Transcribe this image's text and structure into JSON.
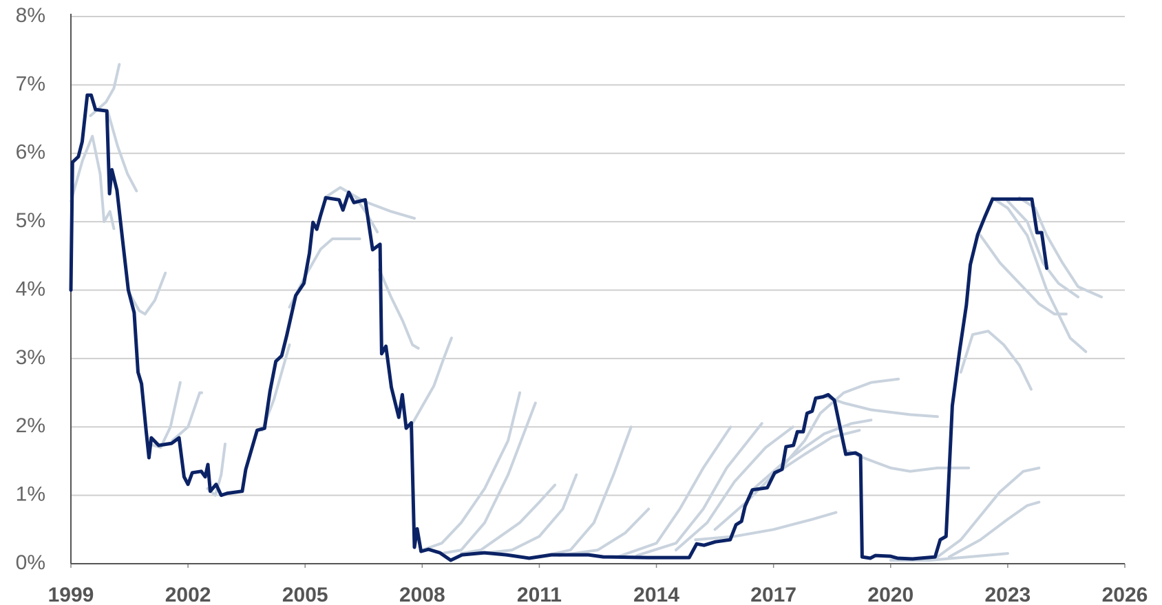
{
  "chart_data": {
    "type": "line",
    "xlim": [
      1999,
      2026
    ],
    "xticks": [
      1999,
      2002,
      2005,
      2008,
      2011,
      2014,
      2017,
      2020,
      2023,
      2026
    ],
    "ylim": [
      0,
      8
    ],
    "yticks": [
      {
        "value": 0,
        "label": "0%"
      },
      {
        "value": 1,
        "label": "1%"
      },
      {
        "value": 2,
        "label": "2%"
      },
      {
        "value": 3,
        "label": "3%"
      },
      {
        "value": 4,
        "label": "4%"
      },
      {
        "value": 5,
        "label": "5%"
      },
      {
        "value": 6,
        "label": "6%"
      },
      {
        "value": 7,
        "label": "7%"
      },
      {
        "value": 8,
        "label": "8%"
      }
    ],
    "grid": true,
    "series": [
      {
        "color": "#0b2265",
        "x": [
          1999.0,
          1999.04,
          1999.19,
          1999.29,
          1999.42,
          1999.52,
          1999.63,
          1999.92,
          1999.99,
          2000.05,
          2000.18,
          2000.34,
          2000.47,
          2000.62,
          2000.72,
          2000.81,
          2000.93,
          2001.0,
          2001.06,
          2001.25,
          2001.58,
          2001.77,
          2001.9,
          2002.0,
          2002.11,
          2002.34,
          2002.44,
          2002.51,
          2002.57,
          2002.72,
          2002.85,
          2003.01,
          2003.39,
          2003.48,
          2003.77,
          2003.96,
          2004.1,
          2004.25,
          2004.4,
          2004.53,
          2004.76,
          2004.97,
          2005.11,
          2005.2,
          2005.3,
          2005.39,
          2005.53,
          2005.87,
          2005.97,
          2006.12,
          2006.25,
          2006.54,
          2006.73,
          2006.92,
          2006.96,
          2007.07,
          2007.21,
          2007.4,
          2007.49,
          2007.59,
          2007.72,
          2007.8,
          2007.87,
          2007.97,
          2008.16,
          2008.45,
          2008.73,
          2009.02,
          2009.59,
          2010.16,
          2010.74,
          2011.31,
          2012.26,
          2012.64,
          2013.79,
          2014.84,
          2015.03,
          2015.22,
          2015.51,
          2015.89,
          2016.04,
          2016.18,
          2016.27,
          2016.46,
          2016.84,
          2017.03,
          2017.22,
          2017.32,
          2017.51,
          2017.61,
          2017.76,
          2017.86,
          2017.99,
          2018.08,
          2018.27,
          2018.4,
          2018.56,
          2018.71,
          2018.85,
          2019.1,
          2019.23,
          2019.27,
          2019.48,
          2019.61,
          2019.99,
          2020.18,
          2020.56,
          2021.14,
          2021.27,
          2021.42,
          2021.58,
          2021.77,
          2021.94,
          2022.04,
          2022.23,
          2022.42,
          2022.61,
          2023.62,
          2023.75,
          2023.87,
          2024.0
        ],
        "values": [
          4.0,
          5.87,
          5.95,
          6.17,
          6.85,
          6.85,
          6.64,
          6.62,
          5.41,
          5.76,
          5.46,
          4.65,
          4.0,
          3.67,
          2.8,
          2.63,
          1.93,
          1.55,
          1.84,
          1.73,
          1.76,
          1.84,
          1.27,
          1.16,
          1.33,
          1.35,
          1.27,
          1.45,
          1.06,
          1.16,
          1.0,
          1.03,
          1.06,
          1.38,
          1.95,
          1.98,
          2.52,
          2.96,
          3.04,
          3.34,
          3.92,
          4.1,
          4.54,
          4.99,
          4.89,
          5.08,
          5.35,
          5.32,
          5.17,
          5.43,
          5.28,
          5.32,
          4.59,
          4.67,
          3.07,
          3.18,
          2.58,
          2.14,
          2.47,
          1.98,
          2.06,
          0.24,
          0.51,
          0.18,
          0.21,
          0.16,
          0.05,
          0.13,
          0.16,
          0.13,
          0.08,
          0.13,
          0.13,
          0.1,
          0.09,
          0.09,
          0.29,
          0.27,
          0.32,
          0.35,
          0.57,
          0.62,
          0.84,
          1.08,
          1.11,
          1.33,
          1.38,
          1.71,
          1.73,
          1.93,
          1.93,
          2.2,
          2.23,
          2.42,
          2.44,
          2.47,
          2.39,
          1.98,
          1.6,
          1.62,
          1.58,
          0.1,
          0.08,
          0.12,
          0.11,
          0.08,
          0.07,
          0.1,
          0.35,
          0.4,
          2.31,
          3.12,
          3.78,
          4.37,
          4.81,
          5.08,
          5.33,
          5.33,
          4.84,
          4.84,
          4.32
        ]
      },
      {
        "color": "#c9d3de",
        "x": [
          1999.0,
          1999.3,
          1999.55,
          1999.75,
          1999.85,
          2000.0,
          2000.1
        ],
        "values": [
          5.3,
          5.9,
          6.25,
          5.7,
          5.0,
          5.15,
          4.9
        ]
      },
      {
        "color": "#c9d3de",
        "x": [
          1999.5,
          1999.9,
          2000.1,
          2000.24
        ],
        "values": [
          6.55,
          6.75,
          6.95,
          7.3
        ]
      },
      {
        "color": "#c9d3de",
        "x": [
          1999.95,
          2000.2,
          2000.45,
          2000.68
        ],
        "values": [
          6.6,
          6.1,
          5.7,
          5.45
        ]
      },
      {
        "color": "#c9d3de",
        "x": [
          2000.5,
          2000.75,
          2000.9,
          2001.15,
          2001.42
        ],
        "values": [
          3.95,
          3.7,
          3.65,
          3.85,
          4.25
        ]
      },
      {
        "color": "#c9d3de",
        "x": [
          2001.0,
          2001.3,
          2001.55,
          2001.8
        ],
        "values": [
          1.75,
          1.7,
          2.0,
          2.65
        ]
      },
      {
        "color": "#c9d3de",
        "x": [
          2001.6,
          2002.0,
          2002.3,
          2002.35
        ],
        "values": [
          1.8,
          2.0,
          2.5,
          2.5
        ]
      },
      {
        "color": "#c9d3de",
        "x": [
          2002.5,
          2002.7,
          2002.85,
          2002.95
        ],
        "values": [
          1.1,
          1.0,
          1.3,
          1.75
        ]
      },
      {
        "color": "#c9d3de",
        "x": [
          2003.9,
          2004.2,
          2004.5,
          2004.6
        ],
        "values": [
          1.95,
          2.4,
          3.0,
          3.2
        ]
      },
      {
        "color": "#c9d3de",
        "x": [
          2004.6,
          2005.0,
          2005.4,
          2005.7,
          2006.4
        ],
        "values": [
          3.75,
          4.2,
          4.6,
          4.75,
          4.75
        ]
      },
      {
        "color": "#c9d3de",
        "x": [
          2005.5,
          2005.9,
          2006.5,
          2007.2,
          2007.8
        ],
        "values": [
          5.35,
          5.5,
          5.3,
          5.15,
          5.05
        ]
      },
      {
        "color": "#c9d3de",
        "x": [
          2006.3,
          2006.6,
          2006.85
        ],
        "values": [
          5.35,
          5.1,
          4.85
        ]
      },
      {
        "color": "#c9d3de",
        "x": [
          2006.9,
          2007.2,
          2007.5,
          2007.75,
          2007.9
        ],
        "values": [
          4.3,
          3.9,
          3.55,
          3.2,
          3.15
        ]
      },
      {
        "color": "#c9d3de",
        "x": [
          2007.7,
          2008.0,
          2008.3,
          2008.55,
          2008.75
        ],
        "values": [
          2.0,
          2.3,
          2.6,
          3.0,
          3.3
        ]
      },
      {
        "color": "#c9d3de",
        "x": [
          2008.0,
          2008.5,
          2009.0,
          2009.6,
          2010.2,
          2010.5
        ],
        "values": [
          0.2,
          0.3,
          0.6,
          1.1,
          1.8,
          2.5
        ]
      },
      {
        "color": "#c9d3de",
        "x": [
          2008.5,
          2009.0,
          2009.6,
          2010.2,
          2010.9
        ],
        "values": [
          0.15,
          0.2,
          0.6,
          1.3,
          2.35
        ]
      },
      {
        "color": "#c9d3de",
        "x": [
          2009.0,
          2009.5,
          2010.0,
          2010.5,
          2011.0,
          2011.4
        ],
        "values": [
          0.15,
          0.2,
          0.4,
          0.6,
          0.9,
          1.15
        ]
      },
      {
        "color": "#c9d3de",
        "x": [
          2009.5,
          2010.3,
          2011.0,
          2011.6,
          2011.95
        ],
        "values": [
          0.15,
          0.2,
          0.4,
          0.8,
          1.3
        ]
      },
      {
        "color": "#c9d3de",
        "x": [
          2011.0,
          2011.8,
          2012.4,
          2012.9,
          2013.35
        ],
        "values": [
          0.1,
          0.2,
          0.6,
          1.3,
          2.0
        ]
      },
      {
        "color": "#c9d3de",
        "x": [
          2011.5,
          2012.5,
          2013.2,
          2013.8
        ],
        "values": [
          0.12,
          0.2,
          0.45,
          0.8
        ]
      },
      {
        "color": "#c9d3de",
        "x": [
          2013.0,
          2014.0,
          2014.6,
          2015.2,
          2015.9
        ],
        "values": [
          0.1,
          0.3,
          0.8,
          1.4,
          2.0
        ]
      },
      {
        "color": "#c9d3de",
        "x": [
          2013.5,
          2014.5,
          2015.2,
          2015.8,
          2016.7
        ],
        "values": [
          0.12,
          0.3,
          0.8,
          1.4,
          2.05
        ]
      },
      {
        "color": "#c9d3de",
        "x": [
          2014.5,
          2015.3,
          2016.0,
          2016.8,
          2017.5
        ],
        "values": [
          0.2,
          0.6,
          1.2,
          1.7,
          2.0
        ]
      },
      {
        "color": "#c9d3de",
        "x": [
          2015.0,
          2016.0,
          2017.0,
          2018.0,
          2018.6
        ],
        "values": [
          0.35,
          0.4,
          0.5,
          0.65,
          0.75
        ]
      },
      {
        "color": "#c9d3de",
        "x": [
          2015.5,
          2016.3,
          2017.0,
          2017.8,
          2018.5,
          2019.2
        ],
        "values": [
          0.5,
          0.9,
          1.3,
          1.6,
          1.85,
          1.95
        ]
      },
      {
        "color": "#c9d3de",
        "x": [
          2016.5,
          2017.2,
          2017.8,
          2018.3,
          2019.0,
          2019.5
        ],
        "values": [
          1.1,
          1.45,
          1.7,
          1.9,
          2.05,
          2.1
        ]
      },
      {
        "color": "#c9d3de",
        "x": [
          2017.2,
          2017.8,
          2018.2,
          2018.8,
          2019.5,
          2020.2
        ],
        "values": [
          1.4,
          1.8,
          2.2,
          2.5,
          2.65,
          2.7
        ]
      },
      {
        "color": "#c9d3de",
        "x": [
          2018.3,
          2018.8,
          2019.5,
          2020.5,
          2021.2
        ],
        "values": [
          2.45,
          2.35,
          2.25,
          2.18,
          2.15
        ]
      },
      {
        "color": "#c9d3de",
        "x": [
          2018.9,
          2019.3,
          2020.0,
          2020.5,
          2021.2,
          2022.0
        ],
        "values": [
          1.65,
          1.55,
          1.4,
          1.35,
          1.4,
          1.4
        ]
      },
      {
        "color": "#c9d3de",
        "x": [
          2021.2,
          2021.8,
          2022.3,
          2022.8,
          2023.4,
          2023.8
        ],
        "values": [
          0.1,
          0.35,
          0.7,
          1.05,
          1.35,
          1.4
        ]
      },
      {
        "color": "#c9d3de",
        "x": [
          2021.5,
          2022.3,
          2023.0,
          2023.5,
          2023.8
        ],
        "values": [
          0.1,
          0.35,
          0.65,
          0.85,
          0.9
        ]
      },
      {
        "color": "#c9d3de",
        "x": [
          2020.0,
          2021.0,
          2022.0,
          2023.0
        ],
        "values": [
          0.05,
          0.05,
          0.1,
          0.15
        ]
      },
      {
        "color": "#c9d3de",
        "x": [
          2021.8,
          2022.1,
          2022.5,
          2022.9,
          2023.3,
          2023.6
        ],
        "values": [
          2.8,
          3.35,
          3.4,
          3.2,
          2.9,
          2.55
        ]
      },
      {
        "color": "#c9d3de",
        "x": [
          2022.6,
          2023.0,
          2023.5,
          2024.0,
          2024.6,
          2025.0
        ],
        "values": [
          5.35,
          5.2,
          4.8,
          4.0,
          3.3,
          3.1
        ]
      },
      {
        "color": "#c9d3de",
        "x": [
          2022.3,
          2022.8,
          2023.3,
          2023.8,
          2024.2,
          2024.5
        ],
        "values": [
          4.8,
          4.4,
          4.1,
          3.8,
          3.65,
          3.65
        ]
      },
      {
        "color": "#c9d3de",
        "x": [
          2023.3,
          2023.7,
          2024.0,
          2024.4,
          2024.8,
          2025.4
        ],
        "values": [
          5.35,
          5.2,
          4.8,
          4.4,
          4.05,
          3.9
        ]
      },
      {
        "color": "#c9d3de",
        "x": [
          2023.0,
          2023.5,
          2023.9,
          2024.3,
          2024.8
        ],
        "values": [
          5.3,
          5.0,
          4.4,
          4.1,
          3.9
        ]
      }
    ]
  }
}
